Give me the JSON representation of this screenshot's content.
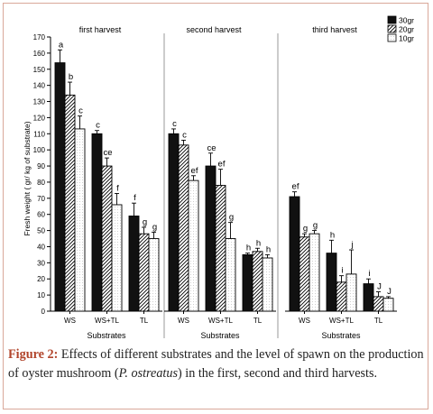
{
  "chart_data": {
    "type": "bar",
    "ylabel": "Fresh weight ( gr/ kg of substrate)",
    "ylim": [
      0,
      170
    ],
    "yticks": [
      0,
      10,
      20,
      30,
      40,
      50,
      60,
      70,
      80,
      90,
      100,
      110,
      120,
      130,
      140,
      150,
      160,
      170
    ],
    "categories": [
      "WS",
      "WS+TL",
      "TL"
    ],
    "legend": {
      "placement": "top-right",
      "entries": [
        "30gr",
        "20gr",
        "10gr"
      ]
    },
    "panels": [
      {
        "title": "first harvest",
        "xlabel": "Substrates",
        "series": [
          {
            "name": "30gr",
            "values": [
              154,
              110,
              59
            ],
            "errors": [
              8,
              2,
              8
            ],
            "letters": [
              "a",
              "c",
              "f"
            ]
          },
          {
            "name": "20gr",
            "values": [
              134,
              90,
              48
            ],
            "errors": [
              8,
              5,
              4
            ],
            "letters": [
              "b",
              "ce",
              "g"
            ]
          },
          {
            "name": "10gr",
            "values": [
              113,
              66,
              45
            ],
            "errors": [
              8,
              7,
              4
            ],
            "letters": [
              "c",
              "f",
              "g"
            ]
          }
        ]
      },
      {
        "title": "second harvest",
        "xlabel": "Substrates",
        "series": [
          {
            "name": "30gr",
            "values": [
              110,
              90,
              35
            ],
            "errors": [
              3,
              8,
              1
            ],
            "letters": [
              "c",
              "ce",
              "h"
            ]
          },
          {
            "name": "20gr",
            "values": [
              103,
              78,
              37
            ],
            "errors": [
              3,
              10,
              2
            ],
            "letters": [
              "c",
              "ef",
              "h"
            ]
          },
          {
            "name": "10gr",
            "values": [
              81,
              45,
              33
            ],
            "errors": [
              3,
              10,
              2
            ],
            "letters": [
              "ef",
              "g",
              "h"
            ]
          }
        ]
      },
      {
        "title": "third harvest",
        "xlabel": "Substrates",
        "series": [
          {
            "name": "30gr",
            "values": [
              71,
              36,
              17
            ],
            "errors": [
              3,
              8,
              3
            ],
            "letters": [
              "ef",
              "h",
              "i"
            ]
          },
          {
            "name": "20gr",
            "values": [
              46,
              18,
              9
            ],
            "errors": [
              2,
              4,
              3
            ],
            "letters": [
              "g",
              "i",
              "J"
            ]
          },
          {
            "name": "10gr",
            "values": [
              48,
              23,
              8
            ],
            "errors": [
              2,
              15,
              1
            ],
            "letters": [
              "g",
              "j",
              "J"
            ]
          }
        ]
      }
    ]
  },
  "caption": {
    "label": "Figure 2:",
    "text_before": " Effects of different substrates and the level of spawn on the production of oyster mushroom (",
    "species": "P. ostreatus",
    "text_after": ") in the first, second and third harvests."
  }
}
